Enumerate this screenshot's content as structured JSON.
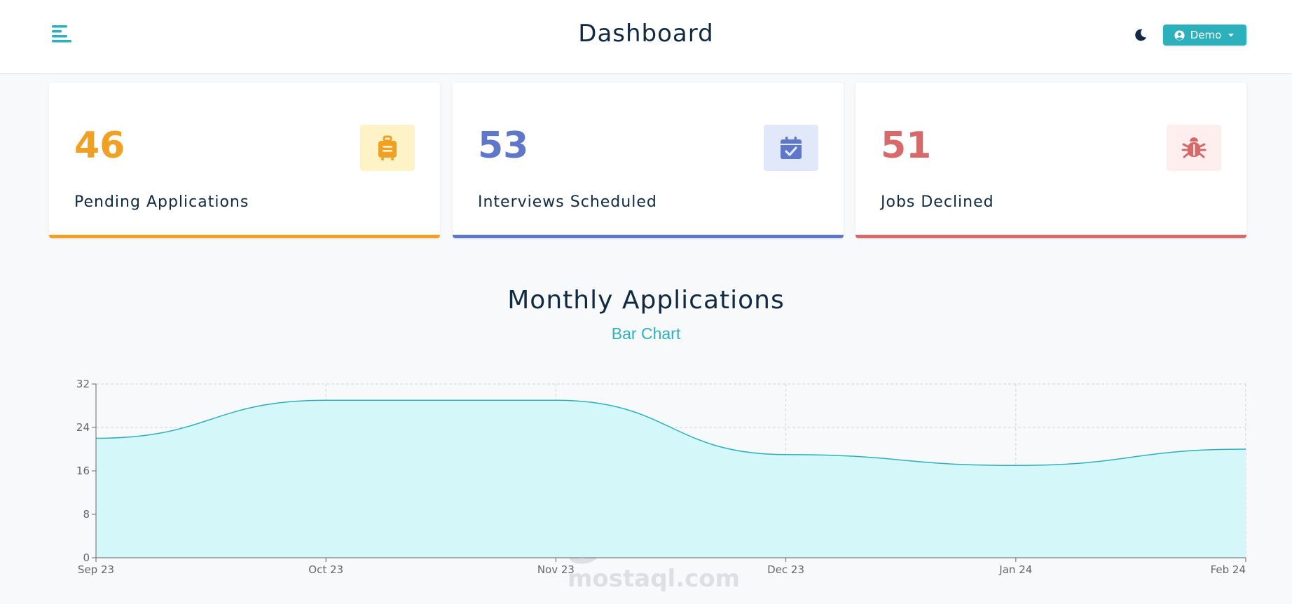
{
  "header": {
    "title": "Dashboard",
    "user_button_label": "Demo",
    "icons": {
      "menu": "menu-align-left-icon",
      "theme": "moon-icon",
      "user": "user-circle-icon",
      "caret": "caret-down-icon"
    },
    "accent_color": "#2cb1bc"
  },
  "stats": [
    {
      "count": "46",
      "label": "Pending Applications",
      "icon": "suitcase-icon",
      "color": "#f0a023",
      "bg": "#fef3c7"
    },
    {
      "count": "53",
      "label": "Interviews Scheduled",
      "icon": "calendar-check-icon",
      "color": "#5f77c8",
      "bg": "#e0e8f9"
    },
    {
      "count": "51",
      "label": "Jobs Declined",
      "icon": "bug-icon",
      "color": "#d66a6a",
      "bg": "#ffeeee"
    }
  ],
  "chart_section": {
    "title": "Monthly Applications",
    "toggle_label": "Bar Chart"
  },
  "chart_data": {
    "type": "area",
    "title": "Monthly Applications",
    "categories": [
      "Sep 23",
      "Oct 23",
      "Nov 23",
      "Dec 23",
      "Jan 24",
      "Feb 24"
    ],
    "values": [
      22,
      29,
      29,
      19,
      17,
      20
    ],
    "ylim": [
      0,
      32
    ],
    "yticks": [
      0,
      8,
      16,
      24,
      32
    ],
    "grid": true,
    "fill_color": "#d4f7fa",
    "line_color": "#2cb1bc"
  },
  "watermark": {
    "arabic": "مستقل",
    "latin": "mostaql.com"
  }
}
